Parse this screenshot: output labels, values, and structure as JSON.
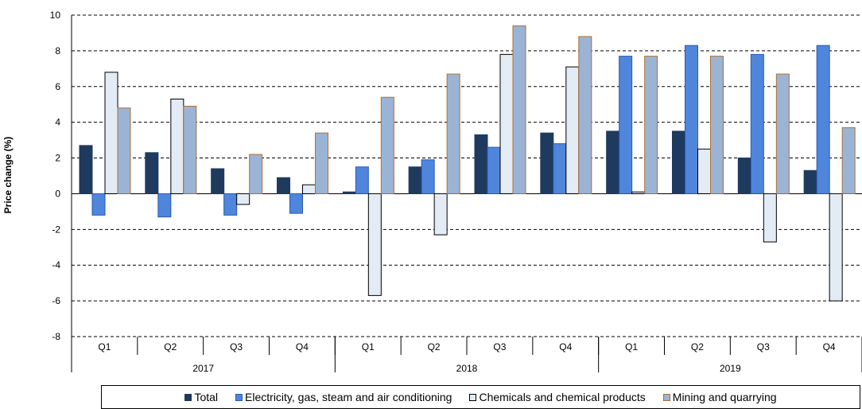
{
  "chart_data": {
    "type": "bar",
    "ylabel": "Price change (%)",
    "ylim": [
      -8,
      10
    ],
    "yticks": [
      10,
      8,
      6,
      4,
      2,
      0,
      -2,
      -4,
      -6,
      -8
    ],
    "grid": "horizontal dashed",
    "legend_position": "bottom",
    "categories": [
      {
        "quarter": "Q1",
        "year": "2017"
      },
      {
        "quarter": "Q2",
        "year": "2017"
      },
      {
        "quarter": "Q3",
        "year": "2017"
      },
      {
        "quarter": "Q4",
        "year": "2017"
      },
      {
        "quarter": "Q1",
        "year": "2018"
      },
      {
        "quarter": "Q2",
        "year": "2018"
      },
      {
        "quarter": "Q3",
        "year": "2018"
      },
      {
        "quarter": "Q4",
        "year": "2018"
      },
      {
        "quarter": "Q1",
        "year": "2019"
      },
      {
        "quarter": "Q2",
        "year": "2019"
      },
      {
        "quarter": "Q3",
        "year": "2019"
      },
      {
        "quarter": "Q4",
        "year": "2019"
      }
    ],
    "years": [
      "2017",
      "2018",
      "2019"
    ],
    "series": [
      {
        "name": "Total",
        "fill": "#1f3a5f",
        "stroke": "#1f3a5f",
        "values": [
          2.7,
          2.3,
          1.4,
          0.9,
          0.1,
          1.5,
          3.3,
          3.4,
          3.5,
          3.5,
          2.0,
          1.3
        ]
      },
      {
        "name": "Electricity, gas, steam and air conditioning",
        "fill": "#4f86dc",
        "stroke": "#2a59b4",
        "values": [
          -1.2,
          -1.3,
          -1.2,
          -1.1,
          1.5,
          1.9,
          2.6,
          2.8,
          7.7,
          8.3,
          7.8,
          8.3
        ]
      },
      {
        "name": "Chemicals and chemical products",
        "fill": "#e3ebf5",
        "stroke": "#000000",
        "values": [
          6.8,
          5.3,
          -0.6,
          0.5,
          -5.7,
          -2.3,
          7.8,
          7.1,
          0.1,
          2.5,
          -2.7,
          -6.0
        ]
      },
      {
        "name": "Mining and quarrying",
        "fill": "#9bb4d6",
        "stroke": "#b07030",
        "values": [
          4.8,
          4.9,
          2.2,
          3.4,
          5.4,
          6.7,
          9.4,
          8.8,
          7.7,
          7.7,
          6.7,
          3.7
        ]
      }
    ]
  }
}
